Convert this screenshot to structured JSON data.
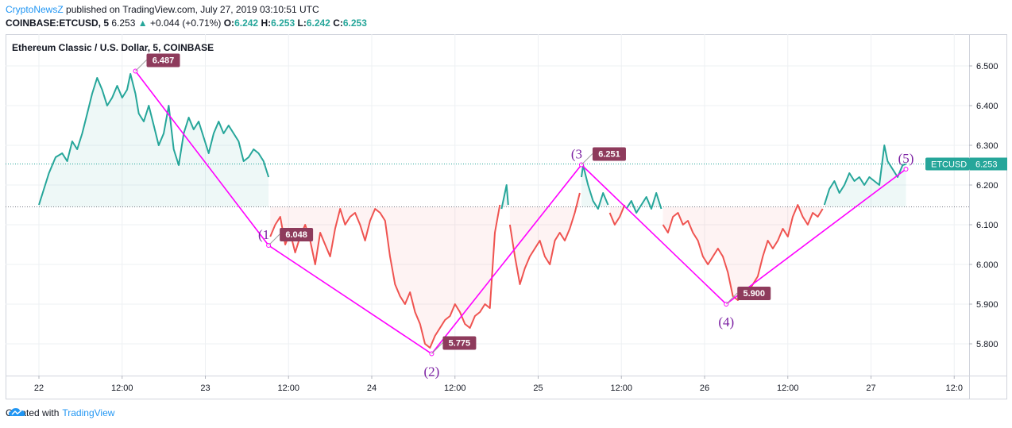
{
  "header": {
    "author": "CryptoNewsZ",
    "published_text": " published on TradingView.com, July 27, 2019 03:10:51 UTC",
    "symbol": "COINBASE:ETCUSD, 5",
    "last": "6.253",
    "change": "+0.044 (+0.71%)",
    "o_label": "O:",
    "o_value": "6.242",
    "h_label": "H:",
    "h_value": "6.253",
    "l_label": "L:",
    "l_value": "6.242",
    "c_label": "C:",
    "c_value": "6.253"
  },
  "footer": {
    "created_with": "Created with",
    "brand": "TradingView"
  },
  "colors": {
    "up": "#26a69a",
    "down": "#ef5350",
    "pattern": "#ff00ff",
    "label_bg": "#8e3b5c",
    "author": "#2196f3"
  },
  "chart_data": {
    "type": "line",
    "title": "Ethereum Classic / U.S. Dollar, 5, COINBASE",
    "x_ticks": [
      "22",
      "12:00",
      "23",
      "12:00",
      "24",
      "12:00",
      "25",
      "12:00",
      "26",
      "12:00",
      "27",
      "12:0"
    ],
    "y_ticks": [
      "5.800",
      "5.900",
      "6.000",
      "6.100",
      "6.200",
      "6.300",
      "6.400",
      "6.500"
    ],
    "ylim": [
      5.72,
      6.58
    ],
    "xlim": [
      0,
      5.53
    ],
    "baseline": 6.145,
    "current_price_label": "ETCUSD",
    "current_price": "6.253",
    "series": [
      {
        "color": "#26a69a",
        "values": [
          [
            0.0,
            6.15
          ],
          [
            0.03,
            6.19
          ],
          [
            0.06,
            6.23
          ],
          [
            0.1,
            6.27
          ],
          [
            0.14,
            6.28
          ],
          [
            0.17,
            6.26
          ],
          [
            0.2,
            6.31
          ],
          [
            0.23,
            6.29
          ],
          [
            0.26,
            6.33
          ],
          [
            0.29,
            6.38
          ],
          [
            0.32,
            6.43
          ],
          [
            0.35,
            6.47
          ],
          [
            0.38,
            6.44
          ],
          [
            0.41,
            6.4
          ],
          [
            0.44,
            6.42
          ],
          [
            0.47,
            6.45
          ],
          [
            0.5,
            6.42
          ],
          [
            0.53,
            6.44
          ],
          [
            0.55,
            6.48
          ],
          [
            0.58,
            6.43
          ],
          [
            0.6,
            6.38
          ],
          [
            0.63,
            6.36
          ],
          [
            0.66,
            6.4
          ],
          [
            0.69,
            6.35
          ],
          [
            0.72,
            6.3
          ],
          [
            0.75,
            6.33
          ],
          [
            0.78,
            6.4
          ],
          [
            0.81,
            6.29
          ],
          [
            0.84,
            6.25
          ],
          [
            0.87,
            6.33
          ],
          [
            0.9,
            6.37
          ],
          [
            0.93,
            6.34
          ],
          [
            0.96,
            6.36
          ],
          [
            0.99,
            6.32
          ],
          [
            1.02,
            6.28
          ],
          [
            1.05,
            6.33
          ],
          [
            1.08,
            6.36
          ],
          [
            1.11,
            6.33
          ],
          [
            1.14,
            6.35
          ],
          [
            1.17,
            6.33
          ],
          [
            1.2,
            6.31
          ],
          [
            1.23,
            6.26
          ],
          [
            1.26,
            6.27
          ],
          [
            1.29,
            6.29
          ],
          [
            1.32,
            6.28
          ],
          [
            1.35,
            6.26
          ],
          [
            1.38,
            6.22
          ]
        ]
      },
      {
        "color": "#ef5350",
        "values": [
          [
            1.39,
            6.07
          ],
          [
            1.42,
            6.1
          ],
          [
            1.45,
            6.12
          ],
          [
            1.48,
            6.05
          ],
          [
            1.51,
            6.08
          ],
          [
            1.54,
            6.03
          ],
          [
            1.57,
            6.07
          ],
          [
            1.6,
            6.1
          ],
          [
            1.63,
            6.06
          ],
          [
            1.66,
            6.0
          ],
          [
            1.69,
            6.08
          ],
          [
            1.72,
            6.05
          ],
          [
            1.75,
            6.02
          ],
          [
            1.78,
            6.09
          ],
          [
            1.81,
            6.14
          ],
          [
            1.84,
            6.1
          ],
          [
            1.87,
            6.12
          ],
          [
            1.9,
            6.13
          ],
          [
            1.93,
            6.1
          ],
          [
            1.96,
            6.06
          ],
          [
            1.99,
            6.11
          ],
          [
            2.02,
            6.14
          ],
          [
            2.05,
            6.13
          ],
          [
            2.08,
            6.11
          ],
          [
            2.11,
            6.02
          ],
          [
            2.14,
            5.95
          ],
          [
            2.17,
            5.92
          ],
          [
            2.2,
            5.9
          ],
          [
            2.23,
            5.93
          ],
          [
            2.26,
            5.88
          ],
          [
            2.29,
            5.85
          ],
          [
            2.32,
            5.8
          ],
          [
            2.35,
            5.79
          ],
          [
            2.38,
            5.82
          ],
          [
            2.41,
            5.84
          ],
          [
            2.44,
            5.86
          ],
          [
            2.47,
            5.87
          ],
          [
            2.5,
            5.9
          ],
          [
            2.53,
            5.88
          ],
          [
            2.56,
            5.85
          ],
          [
            2.59,
            5.84
          ],
          [
            2.62,
            5.87
          ],
          [
            2.65,
            5.88
          ],
          [
            2.68,
            5.9
          ],
          [
            2.71,
            5.89
          ],
          [
            2.74,
            6.08
          ],
          [
            2.77,
            6.15
          ]
        ]
      },
      {
        "color": "#26a69a",
        "values": [
          [
            2.78,
            6.14
          ],
          [
            2.81,
            6.2
          ],
          [
            2.82,
            6.15
          ]
        ]
      },
      {
        "color": "#ef5350",
        "values": [
          [
            2.83,
            6.1
          ],
          [
            2.86,
            6.02
          ],
          [
            2.89,
            5.95
          ],
          [
            2.92,
            5.99
          ],
          [
            2.95,
            6.02
          ],
          [
            2.98,
            6.04
          ],
          [
            3.01,
            6.06
          ],
          [
            3.04,
            6.02
          ],
          [
            3.07,
            6.0
          ],
          [
            3.1,
            6.06
          ],
          [
            3.13,
            6.08
          ],
          [
            3.16,
            6.06
          ],
          [
            3.19,
            6.09
          ],
          [
            3.22,
            6.13
          ],
          [
            3.25,
            6.18
          ]
        ]
      },
      {
        "color": "#26a69a",
        "values": [
          [
            3.26,
            6.22
          ],
          [
            3.27,
            6.25
          ],
          [
            3.3,
            6.2
          ],
          [
            3.33,
            6.16
          ],
          [
            3.36,
            6.14
          ],
          [
            3.39,
            6.18
          ],
          [
            3.42,
            6.15
          ]
        ]
      },
      {
        "color": "#ef5350",
        "values": [
          [
            3.43,
            6.13
          ],
          [
            3.46,
            6.1
          ],
          [
            3.49,
            6.12
          ],
          [
            3.52,
            6.15
          ]
        ]
      },
      {
        "color": "#26a69a",
        "values": [
          [
            3.53,
            6.14
          ],
          [
            3.56,
            6.16
          ],
          [
            3.59,
            6.13
          ],
          [
            3.62,
            6.15
          ],
          [
            3.65,
            6.17
          ],
          [
            3.68,
            6.14
          ],
          [
            3.71,
            6.18
          ],
          [
            3.74,
            6.14
          ]
        ]
      },
      {
        "color": "#ef5350",
        "values": [
          [
            3.75,
            6.1
          ],
          [
            3.78,
            6.08
          ],
          [
            3.81,
            6.12
          ],
          [
            3.84,
            6.13
          ],
          [
            3.87,
            6.1
          ],
          [
            3.9,
            6.11
          ],
          [
            3.93,
            6.08
          ],
          [
            3.96,
            6.06
          ],
          [
            3.99,
            6.02
          ],
          [
            4.02,
            6.0
          ],
          [
            4.05,
            6.02
          ],
          [
            4.08,
            6.04
          ],
          [
            4.11,
            6.02
          ],
          [
            4.14,
            5.98
          ],
          [
            4.17,
            5.92
          ],
          [
            4.2,
            5.91
          ],
          [
            4.23,
            5.94
          ],
          [
            4.26,
            5.93
          ],
          [
            4.29,
            5.95
          ],
          [
            4.32,
            5.97
          ],
          [
            4.35,
            6.02
          ],
          [
            4.38,
            6.06
          ],
          [
            4.41,
            6.04
          ],
          [
            4.44,
            6.06
          ],
          [
            4.47,
            6.09
          ],
          [
            4.5,
            6.07
          ],
          [
            4.53,
            6.12
          ],
          [
            4.56,
            6.15
          ],
          [
            4.59,
            6.12
          ],
          [
            4.62,
            6.1
          ],
          [
            4.65,
            6.13
          ],
          [
            4.68,
            6.12
          ],
          [
            4.71,
            6.14
          ]
        ]
      },
      {
        "color": "#26a69a",
        "values": [
          [
            4.72,
            6.15
          ],
          [
            4.75,
            6.19
          ],
          [
            4.78,
            6.21
          ],
          [
            4.81,
            6.18
          ],
          [
            4.84,
            6.2
          ],
          [
            4.87,
            6.23
          ],
          [
            4.9,
            6.21
          ],
          [
            4.93,
            6.22
          ],
          [
            4.96,
            6.2
          ],
          [
            4.99,
            6.22
          ],
          [
            5.02,
            6.21
          ],
          [
            5.05,
            6.2
          ],
          [
            5.08,
            6.3
          ],
          [
            5.1,
            6.26
          ],
          [
            5.13,
            6.24
          ],
          [
            5.16,
            6.22
          ],
          [
            5.19,
            6.25
          ],
          [
            5.21,
            6.253
          ]
        ]
      }
    ],
    "pattern_points": [
      {
        "label": "",
        "x": 0.58,
        "y": 6.487,
        "price": "6.487"
      },
      {
        "label": "(1",
        "x": 1.38,
        "y": 6.048,
        "price": "6.048"
      },
      {
        "label": "(2)",
        "x": 2.36,
        "y": 5.775,
        "price": "5.775"
      },
      {
        "label": "(3",
        "x": 3.26,
        "y": 6.251,
        "price": "6.251"
      },
      {
        "label": "(4)",
        "x": 4.13,
        "y": 5.9,
        "price": "5.900"
      },
      {
        "label": "(5)",
        "x": 5.21,
        "y": 6.24,
        "price": ""
      }
    ]
  }
}
